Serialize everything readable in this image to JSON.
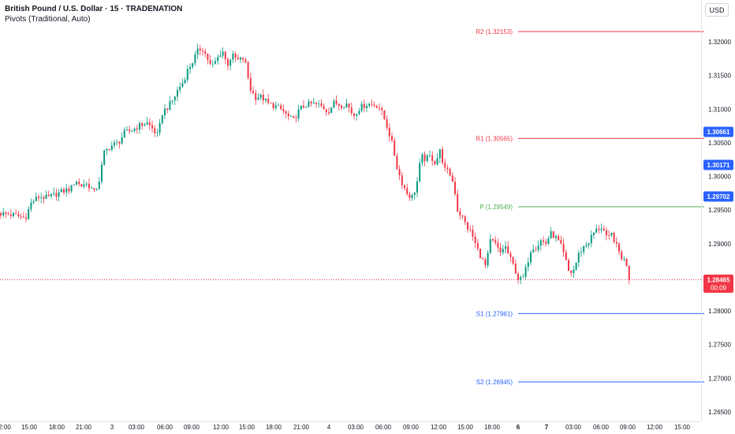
{
  "header": {
    "title": "British Pound / U.S. Dollar · 15 · TRADENATION",
    "indicator": "Pivots (Traditional, Auto)",
    "currency": "USD"
  },
  "colors": {
    "up": "#089981",
    "down": "#f23645",
    "resistance": "#f23645",
    "pivot": "#4caf50",
    "support": "#2962ff",
    "badge_blue": "#2962ff",
    "badge_red": "#f23645"
  },
  "chart_data": {
    "type": "candlestick",
    "y_axis": {
      "ticks": [
        "1.32000",
        "1.31500",
        "1.31000",
        "1.30500",
        "1.30000",
        "1.29500",
        "1.29000",
        "1.28500",
        "1.28000",
        "1.27500",
        "1.27000",
        "1.26500"
      ],
      "range": [
        1.2635,
        1.324
      ]
    },
    "x_axis": {
      "ticks": [
        "2:00",
        "15:00",
        "18:00",
        "21:00",
        "3",
        "03:00",
        "06:00",
        "09:00",
        "12:00",
        "15:00",
        "18:00",
        "21:00",
        "4",
        "03:00",
        "06:00",
        "09:00",
        "12:00",
        "15:00",
        "18:00",
        "6",
        "7",
        "03:00",
        "06:00",
        "09:00",
        "12:00",
        "15:00"
      ],
      "bold_ticks": [
        "6",
        "7"
      ]
    },
    "pivots": [
      {
        "label": "R2",
        "value": 1.32153,
        "text": "R2 (1.32153)",
        "group": "resistance"
      },
      {
        "label": "R1",
        "value": 1.30565,
        "text": "R1 (1.30565)",
        "group": "resistance"
      },
      {
        "label": "P",
        "value": 1.29549,
        "text": "P (1.29549)",
        "group": "pivot"
      },
      {
        "label": "S1",
        "value": 1.27961,
        "text": "S1 (1.27961)",
        "group": "support"
      },
      {
        "label": "S2",
        "value": 1.26945,
        "text": "S2 (1.26945)",
        "group": "support"
      }
    ],
    "price_badges": [
      {
        "value": 1.30661,
        "text": "1.30661",
        "color": "badge_blue"
      },
      {
        "value": 1.30171,
        "text": "1.30171",
        "color": "badge_blue"
      },
      {
        "value": 1.29702,
        "text": "1.29702",
        "color": "badge_blue"
      }
    ],
    "last_price": {
      "value": 1.28465,
      "text": "1.28465",
      "countdown": "00:09"
    },
    "close_path": [
      [
        0,
        1.2945
      ],
      [
        10,
        1.2944
      ],
      [
        20,
        1.2942
      ],
      [
        32,
        1.2938
      ],
      [
        40,
        1.2962
      ],
      [
        50,
        1.297
      ],
      [
        60,
        1.2968
      ],
      [
        70,
        1.2973
      ],
      [
        80,
        1.2978
      ],
      [
        90,
        1.2982
      ],
      [
        96,
        1.2995
      ],
      [
        102,
        1.2985
      ],
      [
        108,
        1.299
      ],
      [
        114,
        1.2985
      ],
      [
        120,
        1.2975
      ],
      [
        126,
        1.2995
      ],
      [
        132,
        1.3035
      ],
      [
        140,
        1.3045
      ],
      [
        150,
        1.305
      ],
      [
        158,
        1.3065
      ],
      [
        166,
        1.3068
      ],
      [
        176,
        1.3075
      ],
      [
        186,
        1.308
      ],
      [
        194,
        1.307
      ],
      [
        200,
        1.306
      ],
      [
        206,
        1.3095
      ],
      [
        214,
        1.3105
      ],
      [
        220,
        1.3115
      ],
      [
        226,
        1.313
      ],
      [
        232,
        1.314
      ],
      [
        238,
        1.3158
      ],
      [
        244,
        1.317
      ],
      [
        250,
        1.3185
      ],
      [
        256,
        1.3192
      ],
      [
        262,
        1.3178
      ],
      [
        268,
        1.3162
      ],
      [
        274,
        1.3172
      ],
      [
        282,
        1.3188
      ],
      [
        288,
        1.3165
      ],
      [
        294,
        1.318
      ],
      [
        302,
        1.3172
      ],
      [
        310,
        1.3176
      ],
      [
        314,
        1.315
      ],
      [
        318,
        1.3128
      ],
      [
        324,
        1.3118
      ],
      [
        332,
        1.3118
      ],
      [
        340,
        1.3108
      ],
      [
        350,
        1.3104
      ],
      [
        358,
        1.3098
      ],
      [
        366,
        1.3088
      ],
      [
        372,
        1.3083
      ],
      [
        380,
        1.31
      ],
      [
        388,
        1.3106
      ],
      [
        396,
        1.3108
      ],
      [
        404,
        1.3106
      ],
      [
        410,
        1.3102
      ],
      [
        416,
        1.3096
      ],
      [
        424,
        1.311
      ],
      [
        432,
        1.3106
      ],
      [
        440,
        1.3108
      ],
      [
        448,
        1.309
      ],
      [
        456,
        1.3102
      ],
      [
        466,
        1.3108
      ],
      [
        474,
        1.3106
      ],
      [
        480,
        1.3105
      ],
      [
        486,
        1.309
      ],
      [
        492,
        1.307
      ],
      [
        498,
        1.3045
      ],
      [
        504,
        1.301
      ],
      [
        510,
        1.299
      ],
      [
        516,
        1.2975
      ],
      [
        522,
        1.2968
      ],
      [
        528,
        1.2985
      ],
      [
        534,
        1.303
      ],
      [
        540,
        1.3025
      ],
      [
        546,
        1.303
      ],
      [
        552,
        1.302
      ],
      [
        558,
        1.3038
      ],
      [
        564,
        1.301
      ],
      [
        570,
        1.3005
      ],
      [
        576,
        1.2985
      ],
      [
        580,
        1.295
      ],
      [
        586,
        1.294
      ],
      [
        592,
        1.2925
      ],
      [
        598,
        1.2915
      ],
      [
        604,
        1.2895
      ],
      [
        610,
        1.288
      ],
      [
        616,
        1.2865
      ],
      [
        622,
        1.2905
      ],
      [
        628,
        1.29
      ],
      [
        634,
        1.2885
      ],
      [
        640,
        1.2898
      ],
      [
        646,
        1.288
      ],
      [
        652,
        1.2865
      ],
      [
        658,
        1.2845
      ],
      [
        664,
        1.285
      ],
      [
        668,
        1.2868
      ],
      [
        674,
        1.2895
      ],
      [
        680,
        1.2895
      ],
      [
        686,
        1.2905
      ],
      [
        692,
        1.29
      ],
      [
        698,
        1.2915
      ],
      [
        704,
        1.291
      ],
      [
        710,
        1.29
      ],
      [
        716,
        1.288
      ],
      [
        722,
        1.2855
      ],
      [
        728,
        1.2862
      ],
      [
        734,
        1.2885
      ],
      [
        740,
        1.2895
      ],
      [
        746,
        1.2902
      ],
      [
        752,
        1.2915
      ],
      [
        758,
        1.2922
      ],
      [
        764,
        1.2925
      ],
      [
        770,
        1.2905
      ],
      [
        776,
        1.2915
      ],
      [
        782,
        1.2895
      ],
      [
        788,
        1.288
      ],
      [
        794,
        1.2872
      ],
      [
        800,
        1.28465
      ]
    ]
  }
}
